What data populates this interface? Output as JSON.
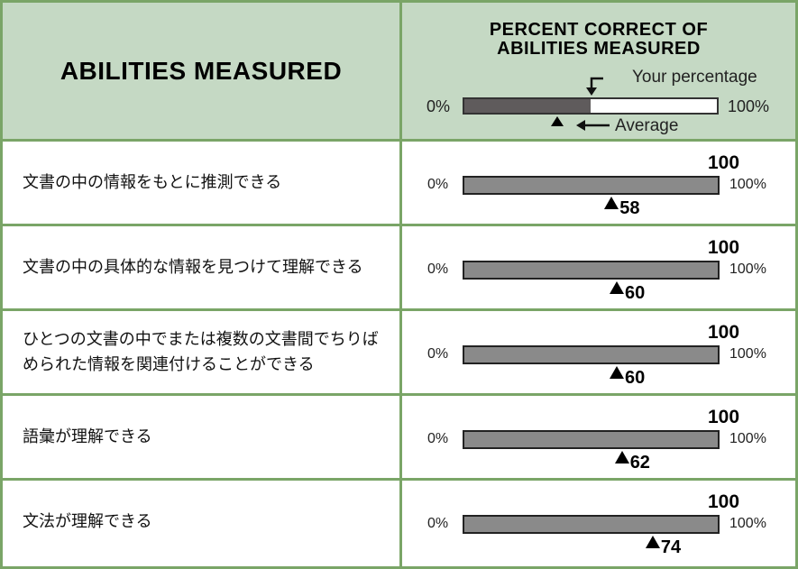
{
  "header": {
    "abilities_title": "ABILITIES MEASURED",
    "percent_title_line1": "PERCENT CORRECT OF",
    "percent_title_line2": "ABILITIES MEASURED"
  },
  "legend": {
    "min_label": "0%",
    "max_label": "100%",
    "your_percentage_label": "Your percentage",
    "average_label": "Average",
    "example_your_percent": 50,
    "example_average_percent": 37
  },
  "scale": {
    "min_label": "0%",
    "max_label": "100%"
  },
  "rows": [
    {
      "label": "文書の中の情報をもとに推測できる",
      "score": "100",
      "average": "58"
    },
    {
      "label": "文書の中の具体的な情報を見つけて理解できる",
      "score": "100",
      "average": "60"
    },
    {
      "label": "ひとつの文書の中でまたは複数の文書間でちりばめられた情報を関連付けることができる",
      "score": "100",
      "average": "60"
    },
    {
      "label": "語彙が理解できる",
      "score": "100",
      "average": "62"
    },
    {
      "label": "文法が理解できる",
      "score": "100",
      "average": "74"
    }
  ]
}
